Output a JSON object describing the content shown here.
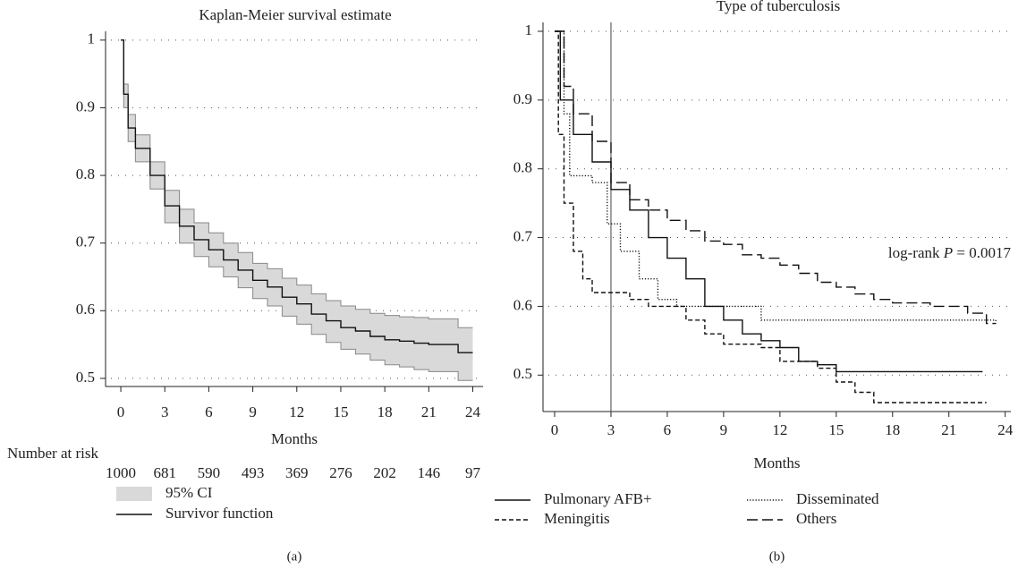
{
  "chart_data": [
    {
      "type": "survival",
      "title": "Kaplan-Meier survival estimate",
      "x_label": "Months",
      "panel_label": "(a)",
      "x": [
        0,
        0.2,
        0.5,
        1,
        2,
        3,
        4,
        5,
        6,
        7,
        8,
        9,
        10,
        11,
        12,
        13,
        14,
        15,
        16,
        17,
        18,
        19,
        20,
        21,
        22,
        23,
        24
      ],
      "band": {
        "name": "95% CI",
        "color": "#d9d9d9",
        "edge_color": "#888888",
        "lower": [
          1,
          0.9,
          0.85,
          0.82,
          0.78,
          0.73,
          0.7,
          0.68,
          0.665,
          0.65,
          0.634,
          0.618,
          0.607,
          0.592,
          0.58,
          0.565,
          0.553,
          0.543,
          0.536,
          0.527,
          0.52,
          0.517,
          0.513,
          0.51,
          0.51,
          0.497,
          0.497
        ],
        "upper": [
          1,
          0.935,
          0.89,
          0.86,
          0.82,
          0.778,
          0.75,
          0.73,
          0.715,
          0.7,
          0.686,
          0.67,
          0.662,
          0.648,
          0.638,
          0.625,
          0.615,
          0.607,
          0.602,
          0.596,
          0.593,
          0.591,
          0.59,
          0.588,
          0.588,
          0.575,
          0.575
        ]
      },
      "series": [
        {
          "name": "Survivor function",
          "color": "#111111",
          "style": "solid",
          "x": [
            0,
            0.2,
            0.5,
            1,
            2,
            3,
            4,
            5,
            6,
            7,
            8,
            9,
            10,
            11,
            12,
            13,
            14,
            15,
            16,
            17,
            18,
            19,
            20,
            21,
            22,
            23,
            24
          ],
          "values": [
            1,
            0.92,
            0.87,
            0.84,
            0.8,
            0.755,
            0.725,
            0.705,
            0.69,
            0.675,
            0.66,
            0.645,
            0.635,
            0.62,
            0.61,
            0.595,
            0.585,
            0.575,
            0.57,
            0.562,
            0.557,
            0.555,
            0.552,
            0.55,
            0.55,
            0.538,
            0.538
          ]
        }
      ],
      "xlim": [
        -1.04,
        24.7
      ],
      "ylim": [
        0.488,
        1.013
      ],
      "xticks": [
        0,
        3,
        6,
        9,
        12,
        15,
        18,
        21,
        24
      ],
      "yticks": [
        0.5,
        0.6,
        0.7,
        0.8,
        0.9,
        1
      ],
      "grid": true,
      "risk_title": "Number at risk",
      "at_risk": [
        1000,
        681,
        590,
        493,
        369,
        276,
        202,
        146,
        97
      ]
    },
    {
      "type": "survival",
      "title": "Type of tuberculosis",
      "x_label": "Months",
      "panel_label": "(b)",
      "vline": 3,
      "annotation": {
        "prefix": "log-rank ",
        "stat": "P",
        "rest": " = 0.0017"
      },
      "series": [
        {
          "name": "Pulmonary AFB+",
          "color": "#111111",
          "style": "solid",
          "x": [
            0,
            0.3,
            1,
            2,
            3,
            4,
            5,
            6,
            7,
            8,
            9,
            10,
            11,
            12,
            13,
            14,
            15,
            22.8
          ],
          "values": [
            1,
            0.9,
            0.85,
            0.81,
            0.77,
            0.74,
            0.7,
            0.67,
            0.64,
            0.6,
            0.58,
            0.56,
            0.55,
            0.54,
            0.52,
            0.515,
            0.505,
            0.505
          ]
        },
        {
          "name": "Disseminated",
          "color": "#111111",
          "style": "dotted",
          "x": [
            0,
            0.5,
            0.8,
            2,
            2.8,
            3.5,
            4.5,
            5.5,
            6.5,
            11,
            23.5
          ],
          "values": [
            1,
            0.88,
            0.79,
            0.78,
            0.72,
            0.68,
            0.64,
            0.61,
            0.6,
            0.58,
            0.575
          ]
        },
        {
          "name": "Meningitis",
          "color": "#111111",
          "style": "dashed",
          "x": [
            0,
            0.2,
            0.5,
            1,
            1.5,
            2,
            4,
            5,
            7,
            8,
            9,
            11,
            12,
            14,
            15,
            16,
            17,
            23
          ],
          "values": [
            1,
            0.85,
            0.75,
            0.68,
            0.64,
            0.62,
            0.61,
            0.6,
            0.58,
            0.56,
            0.545,
            0.54,
            0.52,
            0.51,
            0.49,
            0.475,
            0.46,
            0.46
          ]
        },
        {
          "name": "Others",
          "color": "#111111",
          "style": "longdash",
          "x": [
            0,
            0.5,
            1,
            2,
            3,
            4,
            5,
            6,
            7,
            8,
            9,
            10,
            11,
            12,
            13,
            14,
            15,
            16,
            17,
            18,
            20,
            22,
            23,
            23.5
          ],
          "values": [
            1,
            0.92,
            0.88,
            0.84,
            0.78,
            0.755,
            0.74,
            0.725,
            0.71,
            0.695,
            0.69,
            0.675,
            0.67,
            0.66,
            0.648,
            0.635,
            0.628,
            0.618,
            0.61,
            0.605,
            0.6,
            0.59,
            0.575,
            0.575
          ]
        }
      ],
      "xlim": [
        -0.62,
        24.3
      ],
      "ylim": [
        0.447,
        1.013
      ],
      "xticks": [
        0,
        3,
        6,
        9,
        12,
        15,
        18,
        21,
        24
      ],
      "yticks": [
        0.5,
        0.6,
        0.7,
        0.8,
        0.9,
        1
      ],
      "grid": true
    }
  ]
}
